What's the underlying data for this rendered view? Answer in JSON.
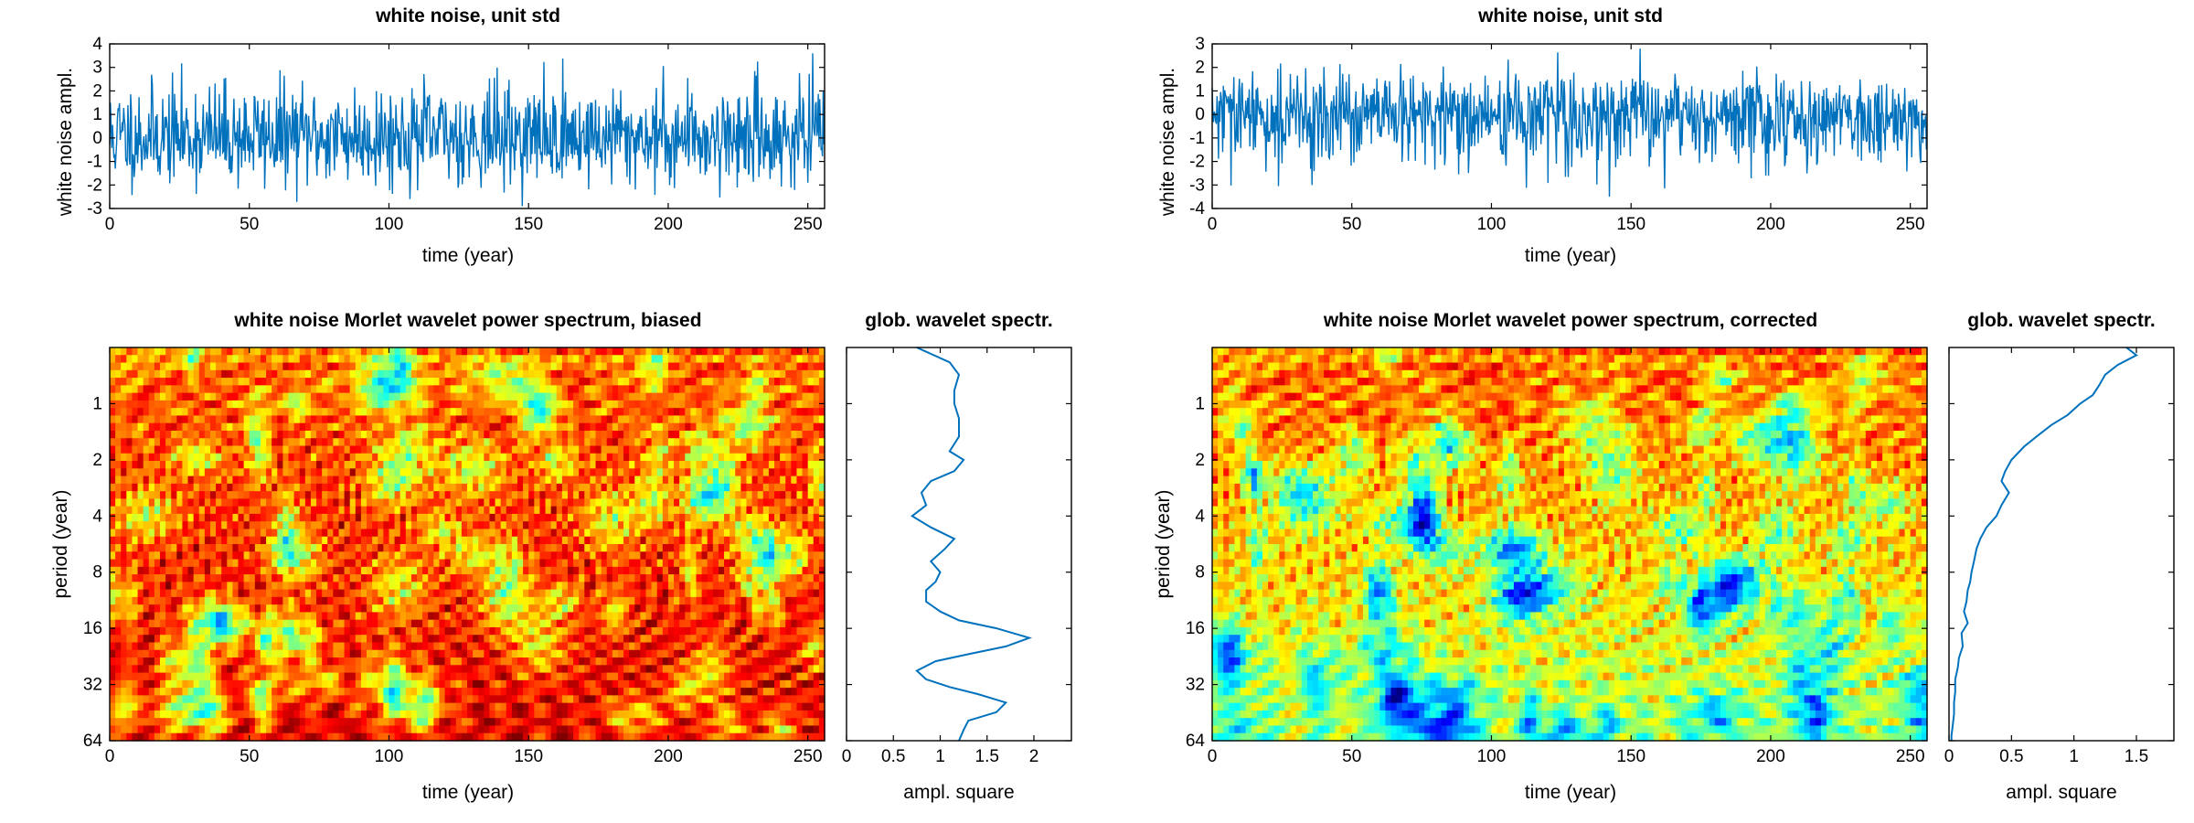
{
  "chart_data": [
    {
      "type": "line",
      "title": "white noise, unit std",
      "xlabel": "time (year)",
      "ylabel": "white noise ampl.",
      "xlim": [
        0,
        256
      ],
      "ylim": [
        -3,
        4
      ],
      "xticks": [
        0,
        50,
        100,
        150,
        200,
        250
      ],
      "yticks": [
        -3,
        -2,
        -1,
        0,
        1,
        2,
        3,
        4
      ],
      "color": "#0072bd",
      "series": [
        {
          "n_points": 1024,
          "dt": 0.25,
          "std": 1,
          "seed": 11,
          "min": -2.9,
          "max": 3.6
        }
      ]
    },
    {
      "type": "heatmap",
      "title": "white noise Morlet wavelet power spectrum, biased",
      "xlabel": "time (year)",
      "ylabel": "period (year)",
      "xlim": [
        0,
        256
      ],
      "period_range": [
        0.5,
        64
      ],
      "log_scale_y": true,
      "yticks": [
        1,
        2,
        4,
        8,
        16,
        32,
        64
      ],
      "xticks": [
        0,
        50,
        100,
        150,
        200,
        250
      ],
      "colormap": "jet",
      "seed": 11
    },
    {
      "type": "line",
      "title": "glob. wavelet spectr.",
      "xlabel": "ampl. square",
      "xlim": [
        0,
        2.4
      ],
      "xticks": [
        0,
        0.5,
        1,
        1.5,
        2
      ],
      "xticklabels": [
        "0",
        "0.5",
        "1",
        "1.5",
        "2"
      ],
      "log_scale_y": true,
      "period": [
        0.5,
        0.6,
        0.7,
        0.85,
        1,
        1.2,
        1.5,
        1.8,
        2,
        2.3,
        2.6,
        3,
        3.5,
        4,
        4.6,
        5.3,
        6,
        7,
        8,
        9,
        10,
        11.5,
        13,
        14.5,
        16,
        18,
        20,
        22,
        24,
        27,
        30,
        33,
        36,
        40,
        45,
        50,
        56,
        64
      ],
      "values": [
        0.75,
        1.1,
        1.2,
        1.15,
        1.15,
        1.2,
        1.2,
        1.1,
        1.25,
        1.15,
        0.9,
        0.8,
        0.85,
        0.7,
        0.9,
        1.15,
        1.05,
        0.9,
        1.0,
        0.95,
        0.85,
        0.85,
        1.0,
        1.2,
        1.6,
        1.95,
        1.7,
        1.3,
        0.95,
        0.75,
        0.85,
        1.1,
        1.4,
        1.7,
        1.6,
        1.3,
        1.25,
        1.2
      ],
      "color": "#0072bd"
    },
    {
      "type": "line",
      "title": "white noise, unit std",
      "xlabel": "time (year)",
      "ylabel": "white noise ampl.",
      "xlim": [
        0,
        256
      ],
      "ylim": [
        -4,
        3
      ],
      "xticks": [
        0,
        50,
        100,
        150,
        200,
        250
      ],
      "yticks": [
        -4,
        -3,
        -2,
        -1,
        0,
        1,
        2,
        3
      ],
      "color": "#0072bd",
      "series": [
        {
          "n_points": 1024,
          "dt": 0.25,
          "std": 1,
          "seed": 29,
          "min": -3.5,
          "max": 2.8
        }
      ]
    },
    {
      "type": "heatmap",
      "title": "white noise Morlet wavelet power spectrum, corrected",
      "xlabel": "time (year)",
      "ylabel": "period (year)",
      "xlim": [
        0,
        256
      ],
      "period_range": [
        0.5,
        64
      ],
      "log_scale_y": true,
      "yticks": [
        1,
        2,
        4,
        8,
        16,
        32,
        64
      ],
      "xticks": [
        0,
        50,
        100,
        150,
        200,
        250
      ],
      "colormap": "jet",
      "seed": 29
    },
    {
      "type": "line",
      "title": "glob. wavelet spectr.",
      "xlabel": "ampl. square",
      "xlim": [
        0,
        1.8
      ],
      "xticks": [
        0,
        0.5,
        1,
        1.5
      ],
      "xticklabels": [
        "0",
        "0.5",
        "1",
        "1.5"
      ],
      "log_scale_y": true,
      "period": [
        0.5,
        0.55,
        0.62,
        0.7,
        0.8,
        0.9,
        1,
        1.15,
        1.3,
        1.5,
        1.7,
        2,
        2.3,
        2.6,
        3,
        3.5,
        4,
        4.6,
        5.3,
        6,
        7,
        8,
        9,
        10,
        11.5,
        13,
        15,
        17,
        20,
        23,
        26,
        30,
        35,
        40,
        46,
        53,
        60,
        64
      ],
      "values": [
        1.42,
        1.5,
        1.35,
        1.25,
        1.2,
        1.15,
        1.05,
        0.95,
        0.82,
        0.7,
        0.6,
        0.5,
        0.45,
        0.42,
        0.48,
        0.42,
        0.38,
        0.3,
        0.25,
        0.22,
        0.2,
        0.18,
        0.17,
        0.15,
        0.14,
        0.12,
        0.15,
        0.1,
        0.11,
        0.08,
        0.07,
        0.05,
        0.05,
        0.04,
        0.04,
        0.03,
        0.02,
        0.02
      ],
      "color": "#0072bd"
    }
  ]
}
